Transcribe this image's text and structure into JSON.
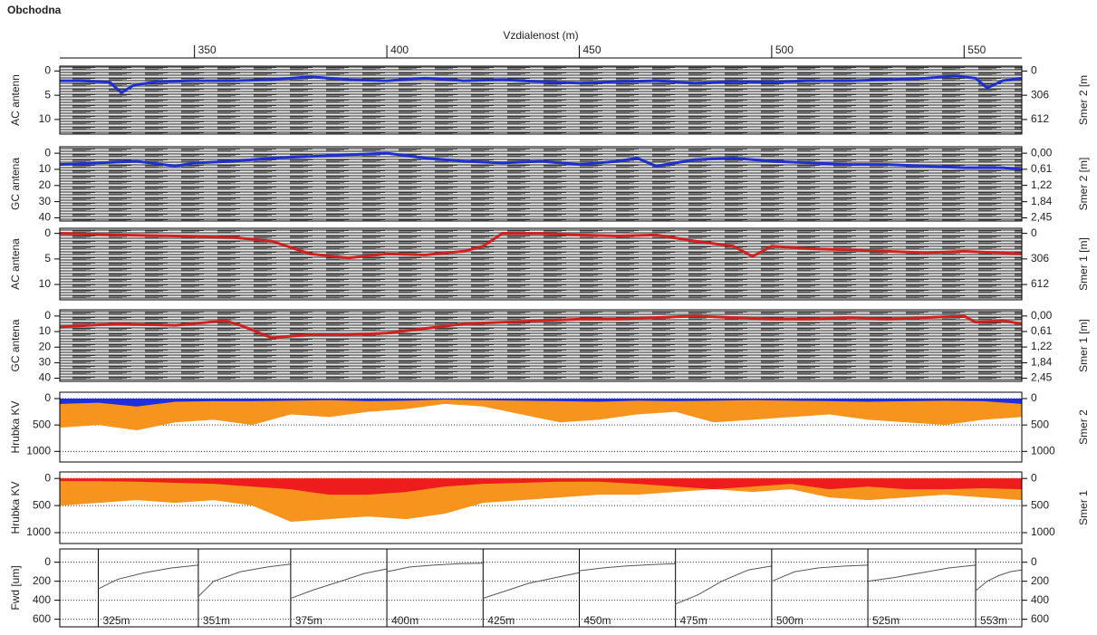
{
  "chart_data": [
    {
      "type": "line",
      "title": "Obchodna",
      "xlabel": "Vzdialenost (m)",
      "xlim": [
        315,
        565
      ],
      "xticks": [
        350,
        400,
        450,
        500,
        550
      ],
      "ylabel": "AC antenn",
      "y2label": "Smer 2 [m",
      "ylim": [
        -1,
        13
      ],
      "yticks": [
        0,
        5,
        10
      ],
      "y2lim": [
        -61.2,
        795.6
      ],
      "y2ticks": [
        0,
        306,
        612
      ],
      "series": [
        {
          "color": "#1f2fd0",
          "x": [
            315,
            320,
            328,
            331,
            334,
            340,
            350,
            360,
            370,
            380,
            390,
            400,
            410,
            420,
            430,
            440,
            450,
            460,
            470,
            480,
            490,
            500,
            510,
            520,
            530,
            540,
            548,
            553,
            556,
            560,
            565
          ],
          "values": [
            2,
            2,
            2.3,
            4.5,
            3,
            2.2,
            2,
            2,
            1.8,
            1.2,
            1.8,
            2,
            1.5,
            2,
            1.8,
            2.2,
            2.5,
            2.2,
            2,
            2.5,
            2.2,
            2.3,
            2,
            2,
            1.8,
            1.5,
            1,
            1.5,
            3.5,
            2,
            1.5
          ]
        }
      ]
    },
    {
      "type": "line",
      "ylabel": "GC antena",
      "y2label": "Smer 2 [m]",
      "ylim": [
        -4,
        42
      ],
      "yticks": [
        0,
        10,
        20,
        30,
        40
      ],
      "y2lim": [
        -0.245,
        2.5725
      ],
      "y2ticks": [
        {
          "value": 0,
          "label": "0,00"
        },
        {
          "value": 0.61,
          "label": "0,61"
        },
        {
          "value": 1.22,
          "label": "1,22"
        },
        {
          "value": 1.84,
          "label": "1,84"
        },
        {
          "value": 2.45,
          "label": "2,45"
        }
      ],
      "series": [
        {
          "color": "#1f2fd0",
          "x": [
            315,
            325,
            335,
            345,
            350,
            360,
            370,
            380,
            390,
            400,
            410,
            420,
            430,
            440,
            450,
            460,
            465,
            470,
            480,
            490,
            500,
            510,
            520,
            530,
            540,
            550,
            560,
            565
          ],
          "values": [
            7,
            6,
            5,
            8,
            6,
            5,
            3,
            2,
            1,
            0,
            3,
            5,
            6,
            5,
            7,
            5,
            3,
            8,
            4,
            3,
            5,
            6,
            7,
            7,
            8,
            9,
            9,
            10
          ]
        }
      ]
    },
    {
      "type": "line",
      "ylabel": "AC antena",
      "y2label": "Smer 1 [m]",
      "ylim": [
        -1,
        13
      ],
      "yticks": [
        0,
        5,
        10
      ],
      "y2lim": [
        -61.2,
        795.6
      ],
      "y2ticks": [
        0,
        306,
        612
      ],
      "series": [
        {
          "color": "#d02020",
          "x": [
            315,
            330,
            345,
            360,
            370,
            380,
            390,
            400,
            410,
            420,
            425,
            430,
            440,
            450,
            460,
            470,
            480,
            490,
            495,
            500,
            510,
            520,
            530,
            540,
            550,
            565
          ],
          "values": [
            0,
            0.3,
            0.5,
            0.8,
            1.5,
            4,
            4.8,
            4,
            4.2,
            3.5,
            2.5,
            0,
            0,
            0.3,
            0.5,
            0.3,
            1.5,
            2.5,
            4.5,
            2.5,
            3,
            3.2,
            3.5,
            3.8,
            3.5,
            4
          ]
        }
      ]
    },
    {
      "type": "line",
      "ylabel": "GC antena",
      "y2label": "Smer 1 [m]",
      "ylim": [
        -4,
        42
      ],
      "yticks": [
        0,
        10,
        20,
        30,
        40
      ],
      "y2lim": [
        -0.245,
        2.5725
      ],
      "y2ticks": [
        {
          "value": 0,
          "label": "0,00"
        },
        {
          "value": 0.61,
          "label": "0,61"
        },
        {
          "value": 1.22,
          "label": "1,22"
        },
        {
          "value": 1.84,
          "label": "1,84"
        },
        {
          "value": 2.45,
          "label": "2,45"
        }
      ],
      "series": [
        {
          "color": "#d02020",
          "x": [
            315,
            330,
            345,
            358,
            362,
            370,
            380,
            390,
            400,
            410,
            420,
            430,
            440,
            450,
            460,
            470,
            480,
            490,
            500,
            510,
            520,
            530,
            540,
            550,
            553,
            560,
            565
          ],
          "values": [
            7,
            5,
            6,
            3,
            6,
            14,
            12,
            12,
            11,
            8,
            5,
            4,
            3,
            2,
            2,
            1,
            0,
            1,
            2,
            2,
            1,
            2,
            1,
            0,
            4,
            3,
            5
          ]
        }
      ]
    },
    {
      "type": "area",
      "ylabel": "Hrubka KV",
      "y2label": "Smer 2",
      "ylim": [
        -120,
        1200
      ],
      "yticks": [
        0,
        500,
        1000
      ],
      "y2lim": [
        -120,
        1200
      ],
      "y2ticks": [
        0,
        500,
        1000
      ],
      "series": [
        {
          "color": "#f7941d",
          "x": [
            315,
            325,
            335,
            345,
            355,
            365,
            375,
            385,
            395,
            405,
            415,
            425,
            435,
            445,
            455,
            465,
            475,
            485,
            495,
            505,
            515,
            525,
            535,
            545,
            555,
            565
          ],
          "values": [
            550,
            500,
            600,
            450,
            400,
            500,
            300,
            350,
            250,
            200,
            100,
            150,
            300,
            450,
            400,
            300,
            250,
            450,
            400,
            350,
            300,
            400,
            450,
            500,
            400,
            350
          ]
        },
        {
          "color": "#1f2fe0",
          "x": [
            315,
            325,
            335,
            345,
            355,
            365,
            375,
            385,
            395,
            405,
            415,
            425,
            435,
            445,
            455,
            465,
            475,
            485,
            495,
            505,
            515,
            525,
            535,
            545,
            555,
            565
          ],
          "values": [
            100,
            80,
            150,
            60,
            50,
            50,
            40,
            30,
            50,
            40,
            20,
            30,
            40,
            50,
            60,
            40,
            50,
            40,
            30,
            40,
            50,
            60,
            50,
            40,
            50,
            100
          ]
        }
      ]
    },
    {
      "type": "area",
      "ylabel": "Hrubka KV",
      "y2label": "Smer 1",
      "ylim": [
        -120,
        1200
      ],
      "yticks": [
        0,
        500,
        1000
      ],
      "y2lim": [
        -120,
        1200
      ],
      "y2ticks": [
        0,
        500,
        1000
      ],
      "series": [
        {
          "color": "#f7941d",
          "x": [
            315,
            325,
            335,
            345,
            355,
            365,
            375,
            385,
            395,
            405,
            415,
            425,
            435,
            445,
            455,
            465,
            475,
            485,
            495,
            505,
            515,
            525,
            535,
            545,
            555,
            565
          ],
          "values": [
            500,
            450,
            400,
            450,
            400,
            500,
            800,
            750,
            700,
            750,
            650,
            450,
            400,
            350,
            300,
            300,
            250,
            200,
            250,
            200,
            350,
            400,
            350,
            300,
            350,
            400
          ]
        },
        {
          "color": "#ee1c1c",
          "x": [
            315,
            325,
            335,
            345,
            355,
            365,
            375,
            385,
            395,
            405,
            415,
            425,
            435,
            445,
            455,
            465,
            475,
            485,
            495,
            505,
            515,
            525,
            535,
            545,
            555,
            565
          ],
          "values": [
            50,
            50,
            60,
            80,
            100,
            150,
            200,
            300,
            300,
            250,
            150,
            100,
            80,
            60,
            60,
            100,
            150,
            200,
            150,
            100,
            200,
            150,
            200,
            200,
            180,
            200
          ]
        }
      ]
    },
    {
      "type": "deflection",
      "ylabel": "Fwd [um]",
      "ylim": [
        -140,
        680
      ],
      "yticks": [
        0,
        200,
        400,
        600
      ],
      "y2lim": [
        -140,
        680
      ],
      "y2ticks": [
        0,
        200,
        400,
        600
      ],
      "segments": [
        {
          "label": "325m",
          "x": [
            325,
            330,
            337,
            344,
            351
          ],
          "values": [
            280,
            180,
            110,
            60,
            30
          ]
        },
        {
          "label": "351m",
          "x": [
            351,
            355,
            362,
            369,
            375
          ],
          "values": [
            360,
            200,
            100,
            50,
            20
          ]
        },
        {
          "label": "375m",
          "x": [
            375,
            381,
            388,
            394,
            400
          ],
          "values": [
            380,
            290,
            200,
            120,
            70
          ]
        },
        {
          "label": "400m",
          "x": [
            400,
            406,
            412,
            419,
            425
          ],
          "values": [
            100,
            50,
            30,
            15,
            10
          ]
        },
        {
          "label": "425m",
          "x": [
            425,
            431,
            437,
            444,
            450
          ],
          "values": [
            380,
            300,
            220,
            160,
            110
          ]
        },
        {
          "label": "450m",
          "x": [
            450,
            456,
            462,
            469,
            475
          ],
          "values": [
            90,
            60,
            40,
            25,
            15
          ]
        },
        {
          "label": "475m",
          "x": [
            475,
            481,
            487,
            494,
            500
          ],
          "values": [
            440,
            340,
            200,
            80,
            40
          ]
        },
        {
          "label": "500m",
          "x": [
            500,
            506,
            512,
            519,
            525
          ],
          "values": [
            200,
            100,
            60,
            40,
            30
          ]
        },
        {
          "label": "525m",
          "x": [
            525,
            532,
            539,
            546,
            553
          ],
          "values": [
            200,
            160,
            110,
            60,
            30
          ]
        },
        {
          "label": "553m",
          "x": [
            553,
            556,
            559,
            562,
            565
          ],
          "values": [
            300,
            200,
            140,
            100,
            80
          ]
        }
      ]
    }
  ]
}
